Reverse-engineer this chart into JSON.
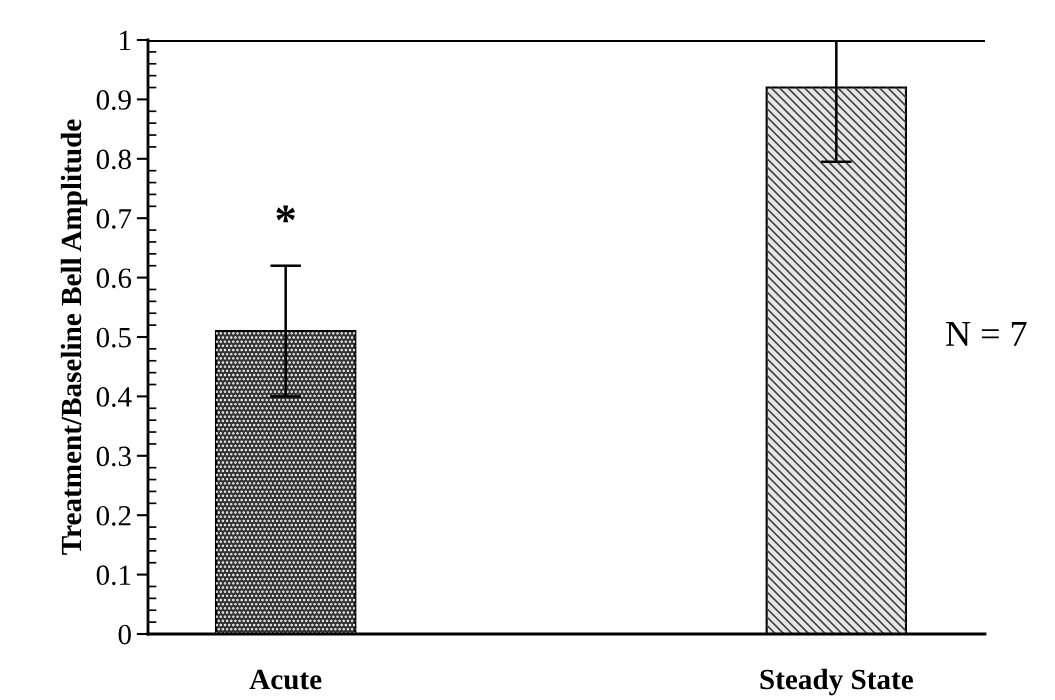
{
  "chart_data": {
    "type": "bar",
    "ylabel": "Treatment/Baseline Bell Amplitude",
    "categories": [
      "Acute",
      "Steady State"
    ],
    "values": [
      0.51,
      0.92
    ],
    "errors": [
      0.11,
      0.125
    ],
    "colors": [
      "#333333",
      "#e6e6e6"
    ],
    "ylim": [
      0,
      1
    ],
    "yticks": [
      0,
      0.1,
      0.2,
      0.3,
      0.4,
      0.5,
      0.6,
      0.7,
      0.8,
      0.9,
      1
    ],
    "ref_lines": [
      {
        "axis": "y",
        "value": 1,
        "color": "#000000"
      }
    ],
    "annotations": [
      "*",
      "N = 7"
    ],
    "grid": false,
    "legend": false
  }
}
